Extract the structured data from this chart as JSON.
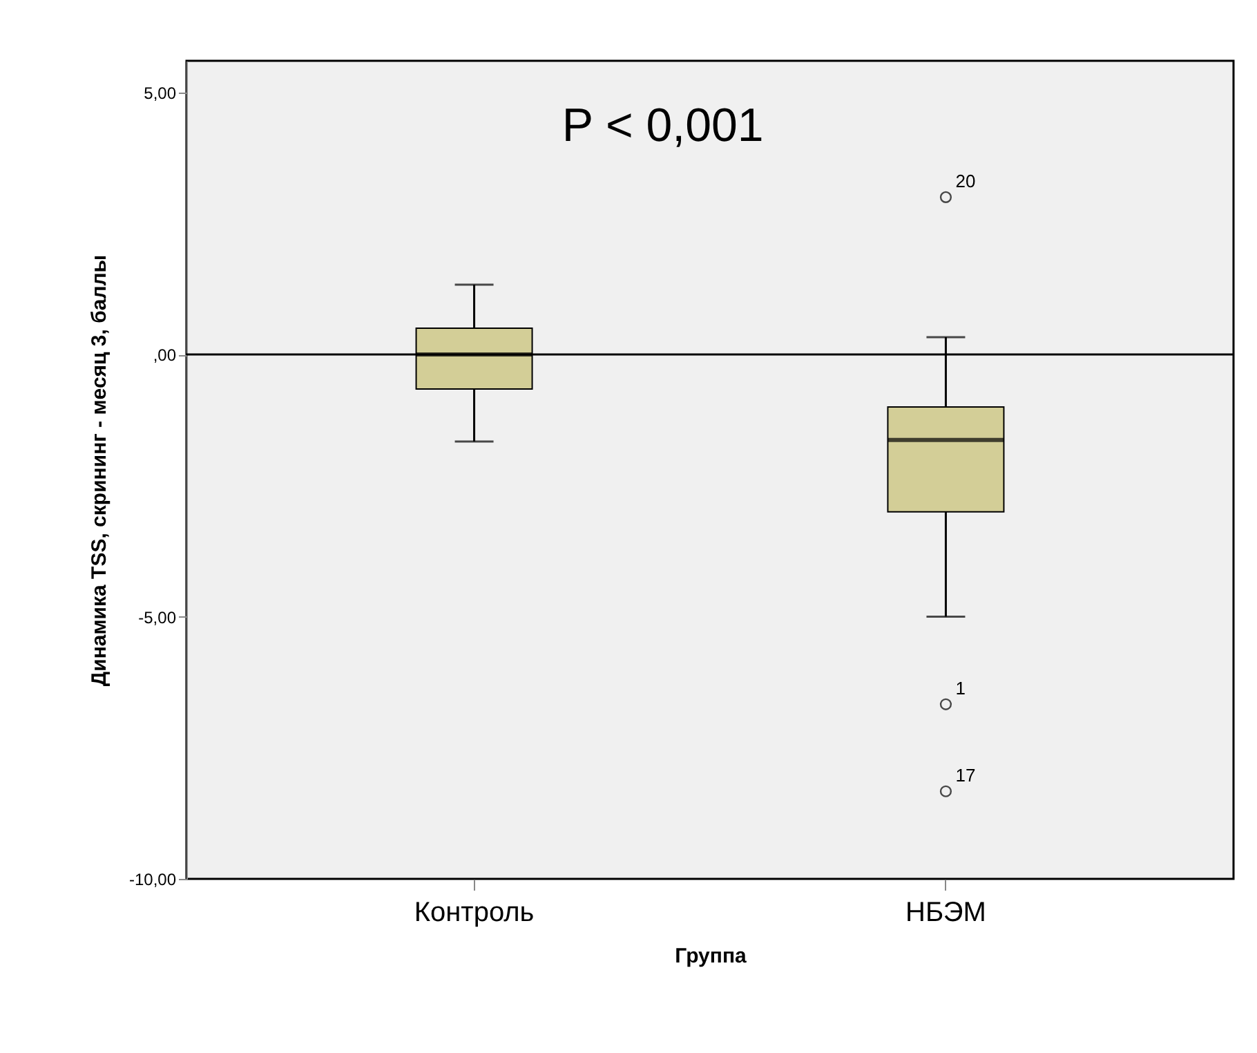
{
  "chart_data": {
    "type": "box",
    "categories": [
      "Контроль",
      "НБЭМ"
    ],
    "xlabel": "Группа",
    "ylabel": "Динамика TSS, скрининг - месяц 3, баллы",
    "color": "#d3ce97",
    "boxes": [
      {
        "low": -1.66,
        "q1": -0.66,
        "median": 0,
        "q3": 0.5,
        "high": 1.33
      },
      {
        "low": -5.0,
        "q1": -3.0,
        "median": -1.63,
        "q3": -1.0,
        "high": 0.33,
        "outliers": [
          3.0,
          -6.67,
          -8.33
        ]
      }
    ],
    "ylim": [
      -10,
      5.6
    ],
    "yticks": [
      {
        "value": -10,
        "label": "-10,00"
      },
      {
        "value": -5,
        "label": "-5,00"
      },
      {
        "value": 0,
        "label": ",00"
      },
      {
        "value": 5,
        "label": "5,00"
      }
    ],
    "ref_lines": [
      {
        "axis": "y",
        "value": 0
      }
    ],
    "grid": false,
    "annotations": [
      "P < 0,001",
      "20",
      "1",
      "17"
    ]
  }
}
